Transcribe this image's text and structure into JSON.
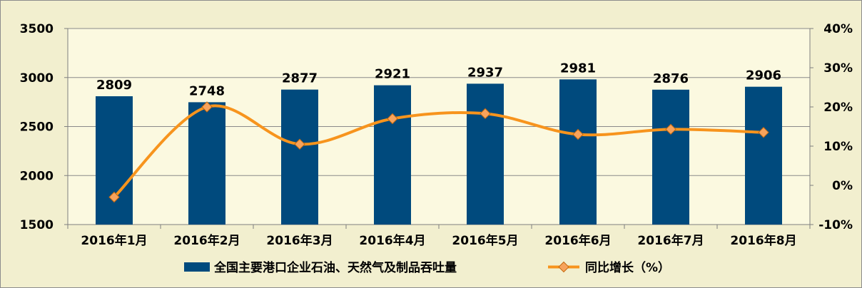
{
  "chart_data": {
    "type": "bar",
    "categories": [
      "2016年1月",
      "2016年2月",
      "2016年3月",
      "2016年4月",
      "2016年5月",
      "2016年6月",
      "2016年7月",
      "2016年8月"
    ],
    "series": [
      {
        "name": "全国主要港口企业石油、天然气及制品吞吐量",
        "type": "bar",
        "axis": "left",
        "color": "#004a7d",
        "values": [
          2809,
          2748,
          2877,
          2921,
          2937,
          2981,
          2876,
          2906
        ]
      },
      {
        "name": "同比增长（%）",
        "type": "line",
        "axis": "right",
        "color": "#f7941d",
        "marker": "diamond",
        "values": [
          -3,
          20,
          10.5,
          17,
          18.3,
          13,
          14.3,
          13.5
        ]
      }
    ],
    "ylim": [
      1500,
      3500
    ],
    "yticks": [
      "1500",
      "2000",
      "2500",
      "3000",
      "3500"
    ],
    "y2lim": [
      -10,
      40
    ],
    "y2ticks": [
      "-10%",
      "0%",
      "10%",
      "20%",
      "30%",
      "40%"
    ],
    "grid": "horizontal",
    "legend": "bottom"
  }
}
